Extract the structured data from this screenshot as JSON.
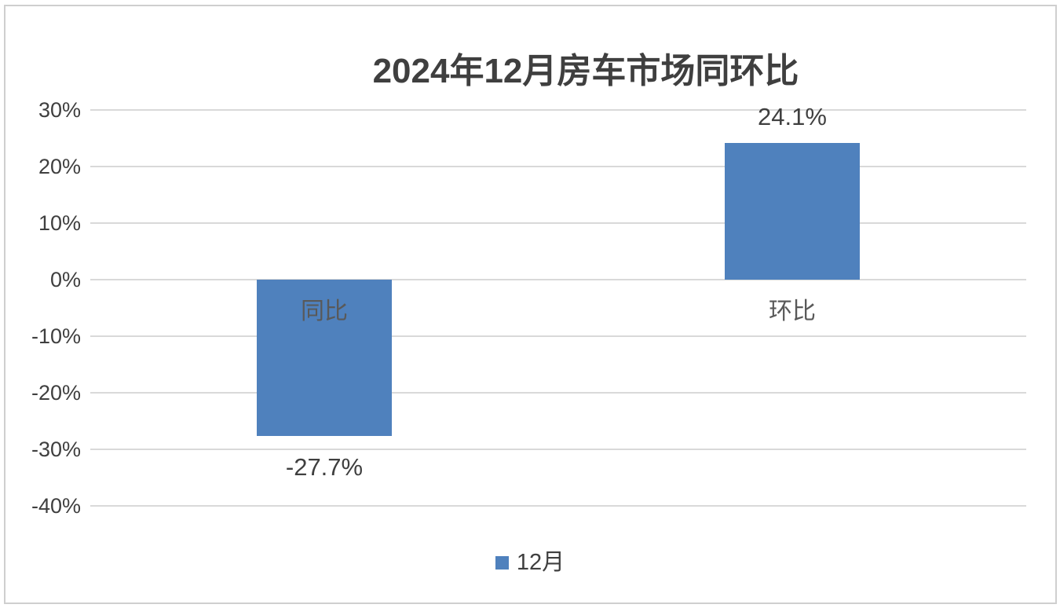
{
  "chart": {
    "title": "2024年12月房车市场同环比",
    "legend_label": "12月"
  },
  "chart_data": {
    "type": "bar",
    "title": "2024年12月房车市场同环比",
    "categories": [
      "同比",
      "环比"
    ],
    "series": [
      {
        "name": "12月",
        "values": [
          -27.7,
          24.1
        ]
      }
    ],
    "data_labels": [
      "-27.7%",
      "24.1%"
    ],
    "xlabel": "",
    "ylabel": "",
    "ylim": [
      -45,
      30
    ],
    "yticks": [
      30,
      20,
      10,
      0,
      -10,
      -20,
      -30,
      -40
    ],
    "ytick_labels": [
      "30%",
      "20%",
      "10%",
      "0%",
      "-10%",
      "-20%",
      "-30%",
      "-40%"
    ],
    "grid": true,
    "legend_position": "bottom",
    "bar_color": "#4f81bd",
    "gridline_color": "#d9d9d9",
    "title_color": "#3f3f3f",
    "category_label_color": "#595959",
    "data_label_color": "#3f3f3f"
  }
}
